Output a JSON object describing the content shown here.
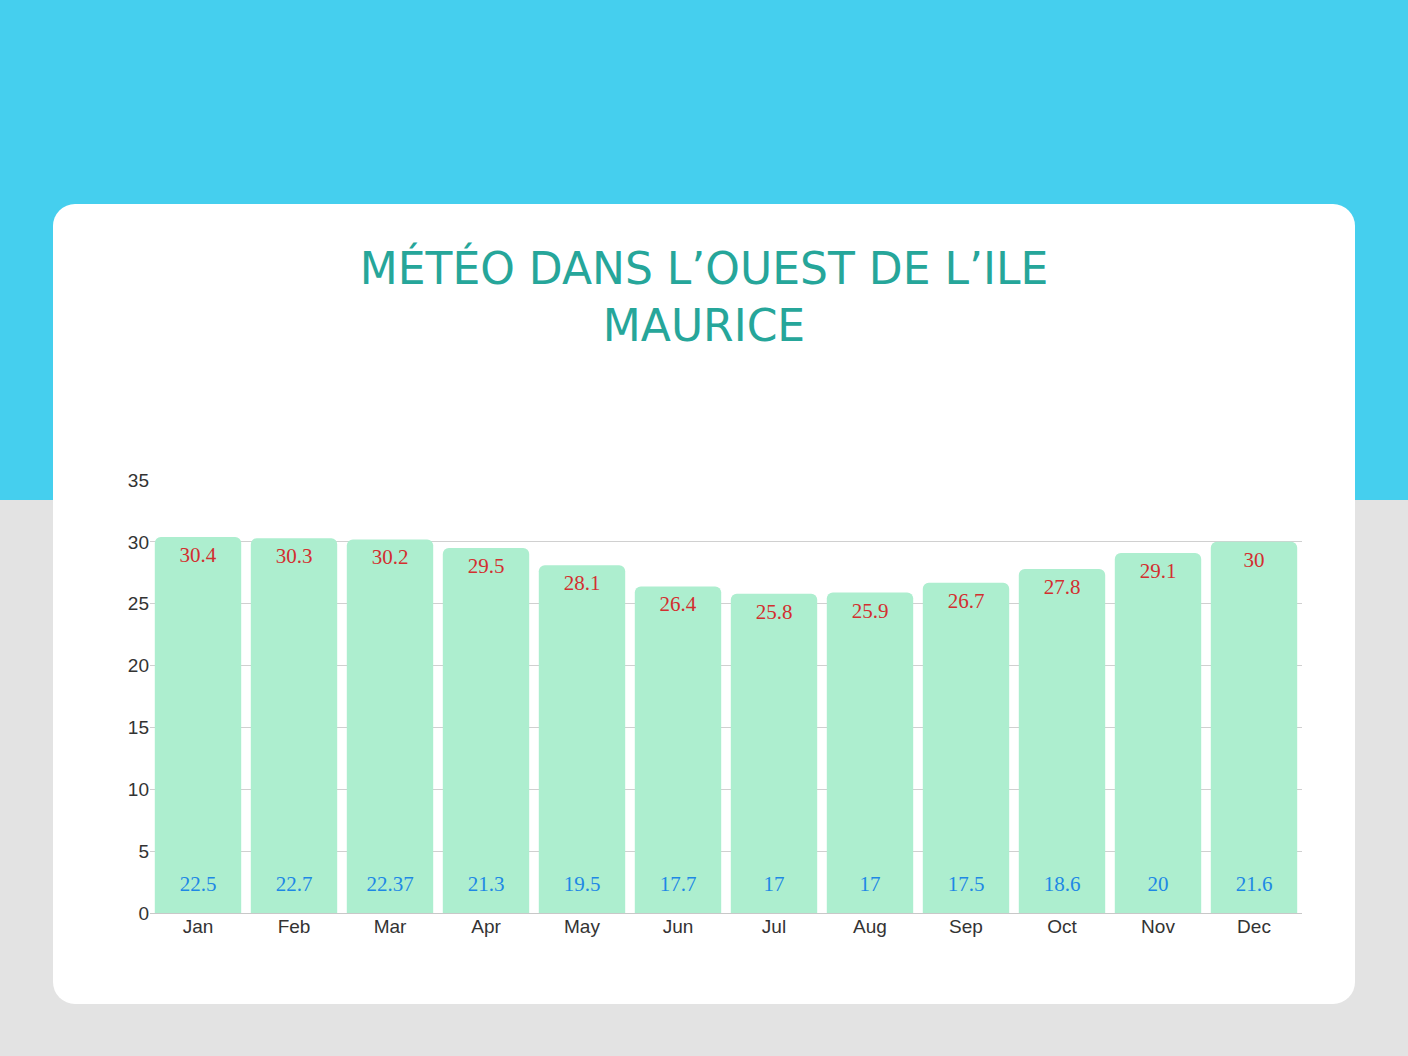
{
  "chart_data": {
    "type": "bar",
    "title": "MÉTÉO DANS L’OUEST DE L’ILE MAURICE",
    "categories": [
      "Jan",
      "Feb",
      "Mar",
      "Apr",
      "May",
      "Jun",
      "Jul",
      "Aug",
      "Sep",
      "Oct",
      "Nov",
      "Dec"
    ],
    "series": [
      {
        "type": "bar",
        "color": "#adeecf",
        "values": [
          30.4,
          30.3,
          30.2,
          29.5,
          28.1,
          26.4,
          25.8,
          25.9,
          26.7,
          27.8,
          29.1,
          30
        ]
      },
      {
        "type": "text",
        "color": "#1e88e5",
        "values": [
          22.5,
          22.7,
          22.37,
          21.3,
          19.5,
          17.7,
          17,
          17,
          17.5,
          18.6,
          20,
          21.6
        ]
      }
    ],
    "data_labels": true,
    "ylim": [
      0,
      35
    ],
    "yticks": [
      0,
      5,
      10,
      15,
      20,
      25,
      30,
      35
    ],
    "grid": true
  }
}
